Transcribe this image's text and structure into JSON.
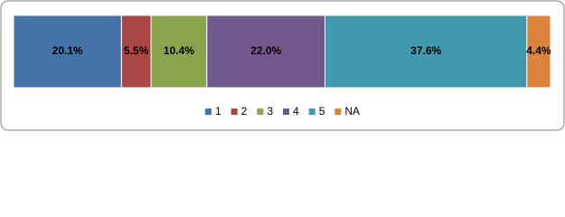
{
  "chart_data": {
    "type": "bar",
    "orientation": "horizontal",
    "stacked": true,
    "categories": [
      null
    ],
    "xlim": [
      0,
      100
    ],
    "series": [
      {
        "name": "1",
        "color": "#4572a7",
        "values": [
          20.1
        ],
        "value_labels": [
          "20.1%"
        ]
      },
      {
        "name": "2",
        "color": "#aa4643",
        "values": [
          5.5
        ],
        "value_labels": [
          "5.5%"
        ]
      },
      {
        "name": "3",
        "color": "#89a54e",
        "values": [
          10.4
        ],
        "value_labels": [
          "10.4%"
        ]
      },
      {
        "name": "4",
        "color": "#71588f",
        "values": [
          22.0
        ],
        "value_labels": [
          "22.0%"
        ]
      },
      {
        "name": "5",
        "color": "#4198af",
        "values": [
          37.6
        ],
        "value_labels": [
          "37.6%"
        ]
      },
      {
        "name": "NA",
        "color": "#db843d",
        "values": [
          4.4
        ],
        "value_labels": [
          "4.4%"
        ]
      }
    ],
    "legend": "bottom"
  }
}
